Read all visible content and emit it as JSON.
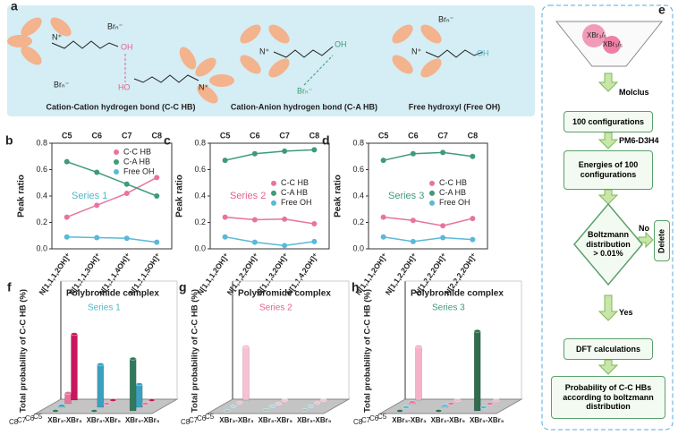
{
  "panel_a": {
    "label": "a",
    "anion": "Brₙ⁻",
    "cation": "N⁺",
    "hydroxyl": "OH",
    "hydroxyl_reverse": "HO",
    "captions": [
      "Cation-Cation hydrogen bond (C-C HB)",
      "Cation-Anion hydrogen bond (C-A HB)",
      "Free hydroxyl (Free OH)"
    ]
  },
  "panel_e": {
    "label": "e",
    "funnel": "XBr₃/₅",
    "nodes": [
      "100 configurations",
      "Energies of 100 configurations",
      "Boltzmann distribution > 0.01%",
      "DFT calculations",
      "Probability of C-C HBs according to boltzmann distribution"
    ],
    "edges": [
      "Molclus",
      "PM6-D3H4",
      "Yes"
    ],
    "no_label": "No",
    "delete": "Delete"
  },
  "chart_data": [
    {
      "type": "line",
      "label": "b",
      "y_label": "Peak ratio",
      "annotation": "Series 1",
      "annotation_color": "#4fb8c8",
      "legend": "upper right",
      "top_categories": [
        "C5",
        "C6",
        "C7",
        "C8"
      ],
      "categories": [
        "N[1,1,1,2OH]⁺",
        "N[1,1,1,3OH]⁺",
        "N[1,1,1,4OH]⁺",
        "N[1,1,1,5OH]⁺"
      ],
      "ylim": [
        0,
        0.8
      ],
      "yticks": [
        {
          "value": 0,
          "label": "0.0"
        },
        {
          "value": 0.2,
          "label": "0.2"
        },
        {
          "value": 0.4,
          "label": "0.4"
        },
        {
          "value": 0.6,
          "label": "0.6"
        },
        {
          "value": 0.8,
          "label": "0.8"
        }
      ],
      "series": [
        {
          "name": "C-C HB",
          "color": "#e8749d",
          "values": [
            0.24,
            0.33,
            0.42,
            0.54
          ]
        },
        {
          "name": "C-A HB",
          "color": "#3f9a78",
          "values": [
            0.66,
            0.58,
            0.49,
            0.4
          ]
        },
        {
          "name": "Free OH",
          "color": "#5ab8d8",
          "values": [
            0.09,
            0.085,
            0.08,
            0.05
          ]
        }
      ]
    },
    {
      "type": "line",
      "label": "c",
      "y_label": "Peak ratio",
      "annotation": "Series 2",
      "annotation_color": "#e8608c",
      "legend": "center right",
      "top_categories": [
        "C5",
        "C6",
        "C7",
        "C8"
      ],
      "categories": [
        "N[1,1,1,2OH]⁺",
        "N[1,1,2,2OH]⁺",
        "N[1,1,3,2OH]⁺",
        "N[1,1,4,2OH]⁺"
      ],
      "ylim": [
        0,
        0.8
      ],
      "yticks": [
        {
          "value": 0,
          "label": "0.0"
        },
        {
          "value": 0.2,
          "label": "0.2"
        },
        {
          "value": 0.4,
          "label": "0.4"
        },
        {
          "value": 0.6,
          "label": "0.6"
        },
        {
          "value": 0.8,
          "label": "0.8"
        }
      ],
      "series": [
        {
          "name": "C-C HB",
          "color": "#e8749d",
          "values": [
            0.24,
            0.22,
            0.225,
            0.19
          ]
        },
        {
          "name": "C-A HB",
          "color": "#3f9a78",
          "values": [
            0.67,
            0.72,
            0.74,
            0.75
          ]
        },
        {
          "name": "Free OH",
          "color": "#5ab8d8",
          "values": [
            0.09,
            0.05,
            0.025,
            0.055
          ]
        }
      ]
    },
    {
      "type": "line",
      "label": "d",
      "y_label": "Peak ratio",
      "annotation": "Series 3",
      "annotation_color": "#3f9a78",
      "legend": "center right",
      "top_categories": [
        "C5",
        "C6",
        "C7",
        "C8"
      ],
      "categories": [
        "N[1,1,1,2OH]⁺",
        "N[1,1,2,2OH]⁺",
        "N[1,2,2,2OH]⁺",
        "N[2,2,2,2OH]⁺"
      ],
      "ylim": [
        0,
        0.8
      ],
      "yticks": [
        {
          "value": 0,
          "label": "0.0"
        },
        {
          "value": 0.2,
          "label": "0.2"
        },
        {
          "value": 0.4,
          "label": "0.4"
        },
        {
          "value": 0.6,
          "label": "0.6"
        },
        {
          "value": 0.8,
          "label": "0.8"
        }
      ],
      "series": [
        {
          "name": "C-C HB",
          "color": "#e8749d",
          "values": [
            0.24,
            0.215,
            0.175,
            0.23
          ]
        },
        {
          "name": "C-A HB",
          "color": "#3f9a78",
          "values": [
            0.67,
            0.72,
            0.73,
            0.7
          ]
        },
        {
          "name": "Free OH",
          "color": "#5ab8d8",
          "values": [
            0.09,
            0.055,
            0.085,
            0.07
          ]
        }
      ]
    },
    {
      "type": "bar3d",
      "label": "f",
      "title": "Polybromide complex",
      "y_label": "Total probability of C-C HB (%)",
      "annotation": "Series 1",
      "annotation_color": "#4fb8c8",
      "categories": [
        "XBr₃-XBr₃",
        "XBr₃-XBr₅",
        "XBr₅-XBr₅"
      ],
      "ylim": [
        0,
        70
      ],
      "series": [
        {
          "name": "C8",
          "color": "#2f7a5c",
          "values": [
            0,
            0,
            34
          ]
        },
        {
          "name": "C7",
          "color": "#3aa0bf",
          "values": [
            1,
            28,
            15
          ]
        },
        {
          "name": "C6",
          "color": "#e8749d",
          "values": [
            7,
            0,
            0
          ]
        },
        {
          "name": "C5",
          "color": "#c8175d",
          "values": [
            43,
            0,
            0
          ]
        }
      ]
    },
    {
      "type": "bar3d",
      "label": "g",
      "title": "Polybromide complex",
      "y_label": "Total probability of C-C HB (%)",
      "annotation": "Series 2",
      "annotation_color": "#e8608c",
      "categories": [
        "XBr₃-XBr₃",
        "XBr₃-XBr₅",
        "XBr₅-XBr₅"
      ],
      "ylim": [
        0,
        70
      ],
      "series": [
        {
          "name": "C8",
          "color": "#9ccbb8",
          "values": [
            0,
            0.5,
            0.5
          ]
        },
        {
          "name": "C7",
          "color": "#a8d6e6",
          "values": [
            0.5,
            0.5,
            0.5
          ]
        },
        {
          "name": "C6",
          "color": "#f3bfd0",
          "values": [
            0.5,
            0,
            0.5
          ]
        },
        {
          "name": "C5",
          "color": "#f7c1d3",
          "values": [
            35,
            0,
            0
          ]
        }
      ]
    },
    {
      "type": "bar3d",
      "label": "h",
      "title": "Polybromide complex",
      "y_label": "Total probability of C-C HB (%)",
      "annotation": "Series 3",
      "annotation_color": "#3f9a78",
      "categories": [
        "XBr₃-XBr₃",
        "XBr₃-XBr₅",
        "XBr₅-XBr₅"
      ],
      "ylim": [
        0,
        70
      ],
      "series": [
        {
          "name": "C8",
          "color": "#2e6e4e",
          "values": [
            0,
            0,
            52
          ]
        },
        {
          "name": "C7",
          "color": "#5ab8d8",
          "values": [
            0,
            1,
            0
          ]
        },
        {
          "name": "C6",
          "color": "#e8749d",
          "values": [
            1,
            0,
            0
          ]
        },
        {
          "name": "C5",
          "color": "#f5b3c8",
          "values": [
            35,
            0,
            0
          ]
        }
      ]
    }
  ]
}
